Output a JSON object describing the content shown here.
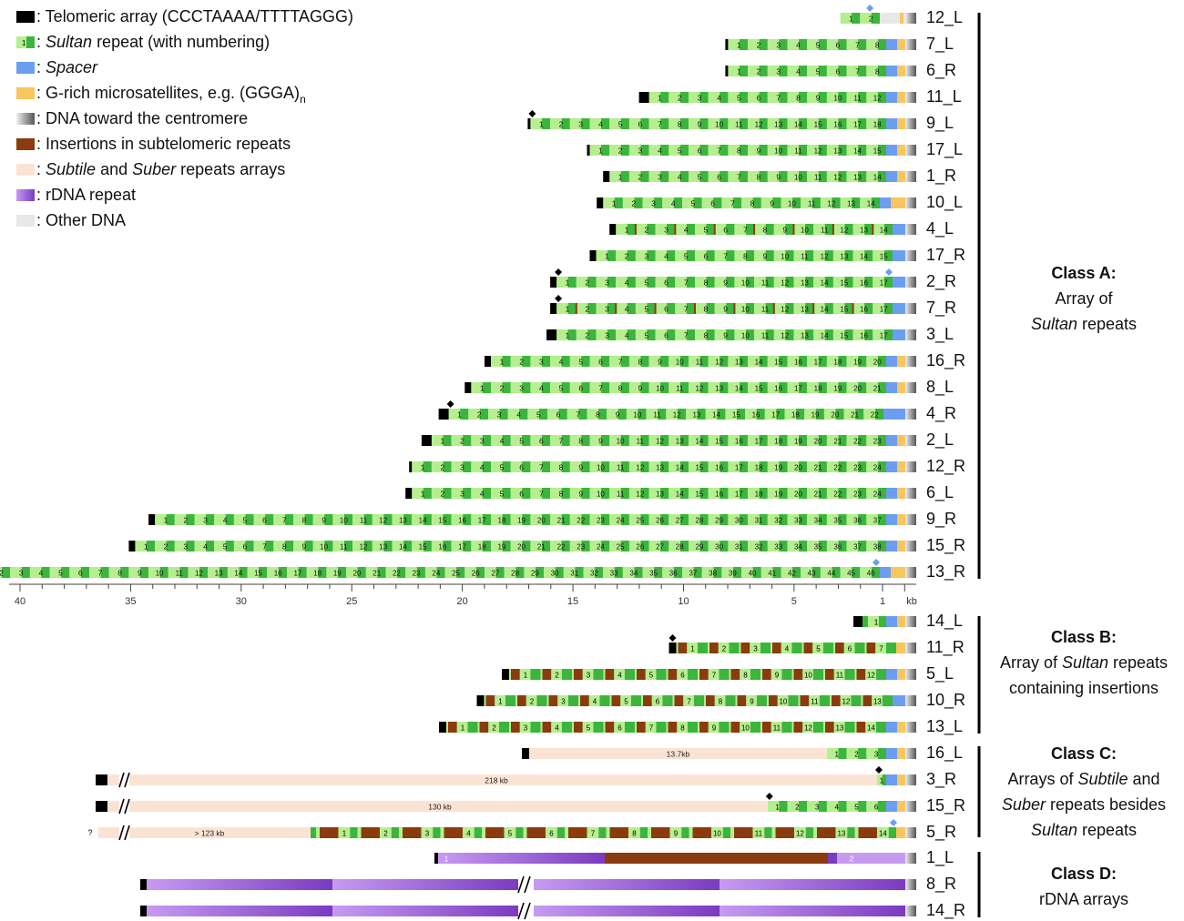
{
  "colors": {
    "telomere": "#000000",
    "sultan_light": "#b6ef8f",
    "sultan_dark": "#3cb53c",
    "spacer": "#6b9ef0",
    "grich": "#f7c65d",
    "centromere_from": "#eeeeee",
    "centromere_to": "#555555",
    "insertion": "#8a3b0f",
    "subtile": "#fbe3d4",
    "rdna_light": "#c79af2",
    "rdna_dark": "#7a3bc0",
    "other": "#e8e8e8",
    "marker_black": "#000000",
    "marker_blue": "#6b9ef0",
    "bracket": "#000000"
  },
  "legend": [
    {
      "key": "telomere",
      "text": ": Telomeric array (CCCTAAAA/TTTTAGGG)"
    },
    {
      "key": "sultan",
      "text": ": Sultan repeat (with numbering)",
      "italic_word": "Sultan",
      "swatch_label": "1"
    },
    {
      "key": "spacer",
      "text": ": Spacer",
      "italic_word": "Spacer"
    },
    {
      "key": "grich",
      "text": ": G-rich microsatellites, e.g. (GGGA)",
      "subscript": "n"
    },
    {
      "key": "centromere",
      "text": ": DNA toward the centromere"
    },
    {
      "key": "insertion",
      "text": ": Insertions in subtelomeric repeats"
    },
    {
      "key": "subtile",
      "text": ": Subtile and Suber repeats arrays",
      "italic_words": [
        "Subtile",
        "Suber"
      ]
    },
    {
      "key": "rdna",
      "text": ": rDNA repeat"
    },
    {
      "key": "other",
      "text": ": Other DNA"
    }
  ],
  "axis": {
    "ticks": [
      "40",
      "35",
      "30",
      "25",
      "20",
      "15",
      "10",
      "5",
      "1"
    ],
    "unit": "kb"
  },
  "classes": [
    {
      "title": "Class A:",
      "lines": [
        "Array of",
        "<i>Sultan</i> repeats"
      ]
    },
    {
      "title": "Class B:",
      "lines": [
        "Array of <i>Sultan</i> repeats",
        "containing insertions"
      ]
    },
    {
      "title": "Class C:",
      "lines": [
        "Arrays of <i>Subtile</i> and",
        "<i>Suber</i> repeats besides",
        "<i>Sultan</i> repeats"
      ]
    },
    {
      "title": "Class D:",
      "lines": [
        "rDNA arrays"
      ]
    }
  ],
  "classA": [
    {
      "label": "12_L",
      "n": 2,
      "telomere": false,
      "tip": "none",
      "end": "other",
      "marker": "blue_tip"
    },
    {
      "label": "7_L",
      "n": 8,
      "telomere": true,
      "tip": "thin",
      "end": "spacer_grich"
    },
    {
      "label": "6_R",
      "n": 8,
      "telomere": true,
      "tip": "thin",
      "end": "spacer_grich"
    },
    {
      "label": "11_L",
      "n": 12,
      "telomere": true,
      "tip": "thick",
      "end": "spacer_grich"
    },
    {
      "label": "9_L",
      "n": 18,
      "telomere": true,
      "tip": "thin",
      "end": "spacer_grich",
      "marker": "black_tip"
    },
    {
      "label": "17_L",
      "n": 15,
      "telomere": true,
      "tip": "thin",
      "end": "spacer_grich"
    },
    {
      "label": "1_R",
      "n": 14,
      "telomere": true,
      "tip": "normal",
      "end": "spacer_grich"
    },
    {
      "label": "10_L",
      "n": 14,
      "telomere": true,
      "tip": "normal",
      "end": "spacer_grich_wide"
    },
    {
      "label": "4_L",
      "n": 14,
      "telomere": true,
      "tip": "normal",
      "end": "spacer",
      "insert_lines": true
    },
    {
      "label": "17_R",
      "n": 15,
      "telomere": true,
      "tip": "normal",
      "end": "spacer"
    },
    {
      "label": "2_R",
      "n": 17,
      "telomere": true,
      "tip": "normal",
      "end": "spacer",
      "marker": "black_tip",
      "marker2": "blue_last"
    },
    {
      "label": "7_R",
      "n": 17,
      "telomere": true,
      "tip": "normal",
      "end": "spacer",
      "marker": "black_tip",
      "insert_lines": true
    },
    {
      "label": "3_L",
      "n": 17,
      "telomere": true,
      "tip": "thick",
      "end": "spacer"
    },
    {
      "label": "16_R",
      "n": 20,
      "telomere": true,
      "tip": "normal",
      "end": "spacer_grich"
    },
    {
      "label": "8_L",
      "n": 21,
      "telomere": true,
      "tip": "normal",
      "end": "spacer_grich"
    },
    {
      "label": "4_R",
      "n": 22,
      "telomere": true,
      "tip": "thick",
      "end": "spacer_wide",
      "marker": "black_tip"
    },
    {
      "label": "2_L",
      "n": 23,
      "telomere": true,
      "tip": "thick",
      "end": "spacer_grich"
    },
    {
      "label": "12_R",
      "n": 24,
      "telomere": true,
      "tip": "thin",
      "end": "spacer_grich"
    },
    {
      "label": "6_L",
      "n": 24,
      "telomere": true,
      "tip": "normal",
      "end": "spacer_grich"
    },
    {
      "label": "9_R",
      "n": 37,
      "telomere": true,
      "tip": "normal",
      "end": "spacer_grich"
    },
    {
      "label": "15_R",
      "n": 38,
      "telomere": true,
      "tip": "normal",
      "end": "spacer_grich"
    },
    {
      "label": "13_R",
      "n": 46,
      "telomere": true,
      "tip": "thick",
      "end": "spacer_grich_wide",
      "marker": "black_tip",
      "marker2": "blue_last"
    }
  ],
  "classB": [
    {
      "label": "14_L",
      "n": 1,
      "end": "spacer_grich"
    },
    {
      "label": "11_R",
      "n": 7,
      "end": "grich",
      "marker": "black_tip"
    },
    {
      "label": "5_L",
      "n": 12,
      "end": "spacer_grich"
    },
    {
      "label": "10_R",
      "n": 13,
      "end": "spacer"
    },
    {
      "label": "13_L",
      "n": 14,
      "end": "spacer_grich"
    }
  ],
  "classC": [
    {
      "label": "16_L",
      "subtile_text": "13.7kb",
      "n": 3,
      "break": false,
      "telomere": true
    },
    {
      "label": "3_R",
      "subtile_text": "218 kb",
      "n": 1,
      "break": true,
      "telomere": true,
      "marker": "black_tip"
    },
    {
      "label": "15_R",
      "subtile_text": "130 kb",
      "n": 6,
      "break": true,
      "telomere": true,
      "marker": "black_tip"
    },
    {
      "label": "5_R",
      "subtile_text": "> 123 kb",
      "n": 14,
      "break": true,
      "telomere": false,
      "question": "?",
      "marker": "blue_last",
      "insertions": true
    }
  ],
  "classD": [
    {
      "label": "1_L",
      "numbers": [
        "1",
        "2"
      ]
    },
    {
      "label": "8_R",
      "numbers": []
    },
    {
      "label": "14_R",
      "numbers": []
    }
  ]
}
